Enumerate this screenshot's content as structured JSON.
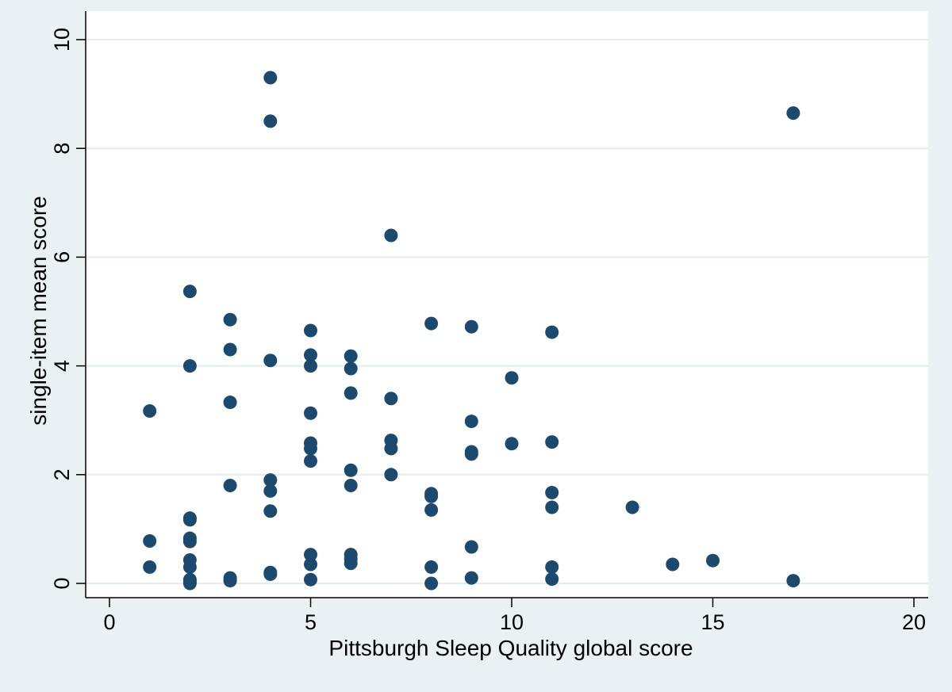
{
  "chart_data": {
    "type": "scatter",
    "title": "",
    "xlabel": "Pittsburgh Sleep Quality global score",
    "ylabel": "single-item mean score",
    "xlim": [
      0,
      20
    ],
    "ylim": [
      0,
      10
    ],
    "xticks": [
      "0",
      "5",
      "10",
      "15",
      "20"
    ],
    "yticks": [
      "0",
      "2",
      "4",
      "6",
      "8",
      "10"
    ],
    "grid": "horizontal",
    "legend": "none",
    "colors": {
      "outer_background": "#eaf1f3",
      "plot_background": "#ffffff",
      "gridline": "#e3ecef",
      "marker": "#1c4a6e",
      "axis": "#000000"
    },
    "points": [
      {
        "x": 1,
        "y": 3.17
      },
      {
        "x": 1,
        "y": 0.78
      },
      {
        "x": 1,
        "y": 0.3
      },
      {
        "x": 2,
        "y": 5.37
      },
      {
        "x": 2,
        "y": 4.0
      },
      {
        "x": 2,
        "y": 1.2
      },
      {
        "x": 2,
        "y": 1.17
      },
      {
        "x": 2,
        "y": 0.83
      },
      {
        "x": 2,
        "y": 0.77
      },
      {
        "x": 2,
        "y": 0.43
      },
      {
        "x": 2,
        "y": 0.3
      },
      {
        "x": 2,
        "y": 0.07
      },
      {
        "x": 2,
        "y": 0.03
      },
      {
        "x": 2,
        "y": 0.0
      },
      {
        "x": 3,
        "y": 4.85
      },
      {
        "x": 3,
        "y": 4.3
      },
      {
        "x": 3,
        "y": 3.33
      },
      {
        "x": 3,
        "y": 1.8
      },
      {
        "x": 3,
        "y": 0.1
      },
      {
        "x": 3,
        "y": 0.05
      },
      {
        "x": 4,
        "y": 9.3
      },
      {
        "x": 4,
        "y": 8.5
      },
      {
        "x": 4,
        "y": 4.1
      },
      {
        "x": 4,
        "y": 1.9
      },
      {
        "x": 4,
        "y": 1.7
      },
      {
        "x": 4,
        "y": 1.33
      },
      {
        "x": 4,
        "y": 0.2
      },
      {
        "x": 4,
        "y": 0.17
      },
      {
        "x": 5,
        "y": 4.65
      },
      {
        "x": 5,
        "y": 4.2
      },
      {
        "x": 5,
        "y": 4.0
      },
      {
        "x": 5,
        "y": 3.13
      },
      {
        "x": 5,
        "y": 2.58
      },
      {
        "x": 5,
        "y": 2.48
      },
      {
        "x": 5,
        "y": 2.25
      },
      {
        "x": 5,
        "y": 0.53
      },
      {
        "x": 5,
        "y": 0.35
      },
      {
        "x": 5,
        "y": 0.07
      },
      {
        "x": 6,
        "y": 4.18
      },
      {
        "x": 6,
        "y": 3.95
      },
      {
        "x": 6,
        "y": 3.5
      },
      {
        "x": 6,
        "y": 2.08
      },
      {
        "x": 6,
        "y": 1.8
      },
      {
        "x": 6,
        "y": 0.53
      },
      {
        "x": 6,
        "y": 0.45
      },
      {
        "x": 6,
        "y": 0.37
      },
      {
        "x": 7,
        "y": 6.4
      },
      {
        "x": 7,
        "y": 3.4
      },
      {
        "x": 7,
        "y": 2.63
      },
      {
        "x": 7,
        "y": 2.48
      },
      {
        "x": 7,
        "y": 2.0
      },
      {
        "x": 8,
        "y": 4.78
      },
      {
        "x": 8,
        "y": 1.65
      },
      {
        "x": 8,
        "y": 1.6
      },
      {
        "x": 8,
        "y": 1.35
      },
      {
        "x": 8,
        "y": 0.3
      },
      {
        "x": 8,
        "y": 0.0
      },
      {
        "x": 9,
        "y": 4.72
      },
      {
        "x": 9,
        "y": 2.98
      },
      {
        "x": 9,
        "y": 2.42
      },
      {
        "x": 9,
        "y": 2.38
      },
      {
        "x": 9,
        "y": 0.67
      },
      {
        "x": 9,
        "y": 0.1
      },
      {
        "x": 10,
        "y": 3.78
      },
      {
        "x": 10,
        "y": 2.57
      },
      {
        "x": 11,
        "y": 4.62
      },
      {
        "x": 11,
        "y": 2.6
      },
      {
        "x": 11,
        "y": 1.67
      },
      {
        "x": 11,
        "y": 1.4
      },
      {
        "x": 11,
        "y": 0.3
      },
      {
        "x": 11,
        "y": 0.08
      },
      {
        "x": 13,
        "y": 1.4
      },
      {
        "x": 14,
        "y": 0.35
      },
      {
        "x": 15,
        "y": 0.42
      },
      {
        "x": 17,
        "y": 8.65
      },
      {
        "x": 17,
        "y": 0.05
      }
    ]
  }
}
